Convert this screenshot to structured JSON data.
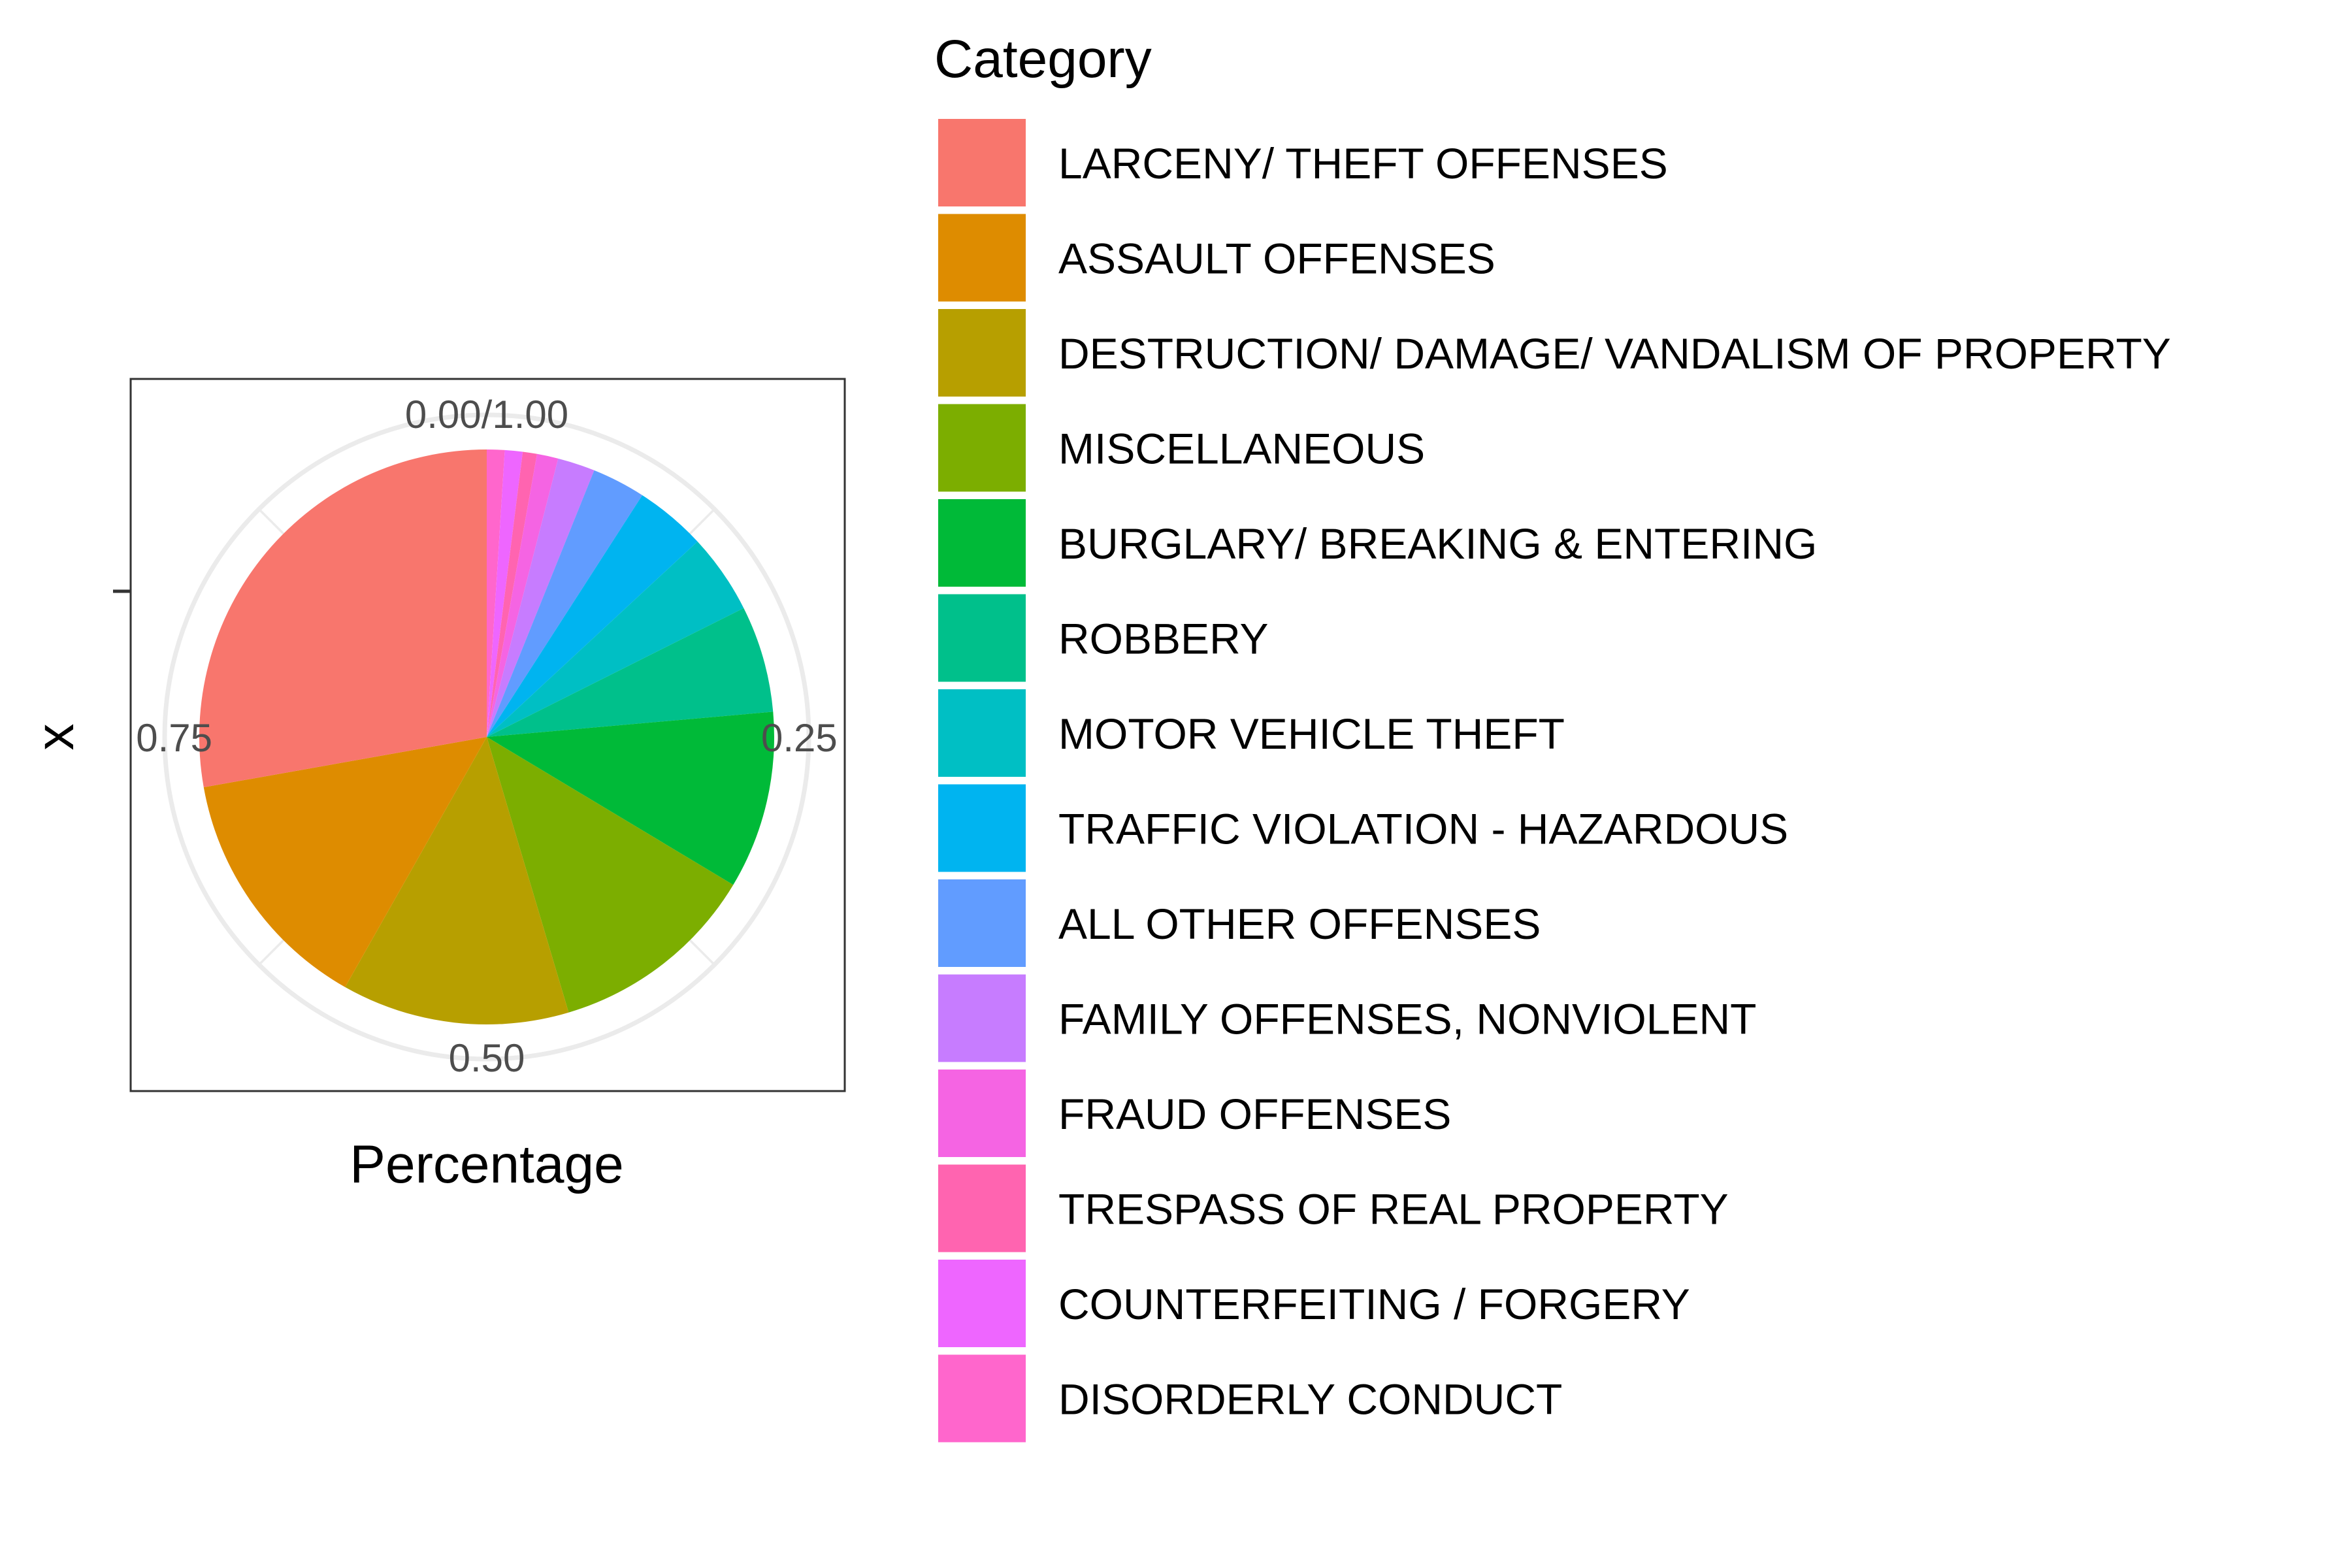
{
  "chart_data": {
    "type": "pie",
    "xlabel": "Percentage",
    "ylabel": "x",
    "theta_ticks": [
      {
        "value": 0.0,
        "label": "0.00/1.00"
      },
      {
        "value": 0.25,
        "label": "0.25"
      },
      {
        "value": 0.5,
        "label": "0.50"
      },
      {
        "value": 0.75,
        "label": "0.75"
      }
    ],
    "legend": {
      "title": "Category",
      "position": "right"
    },
    "grid": true,
    "slices": [
      {
        "category": "LARCENY/ THEFT OFFENSES",
        "value": 0.278,
        "color": "#F8766D"
      },
      {
        "category": "ASSAULT OFFENSES",
        "value": 0.14,
        "color": "#DE8C00"
      },
      {
        "category": "DESTRUCTION/ DAMAGE/ VANDALISM OF PROPERTY",
        "value": 0.128,
        "color": "#B79F00"
      },
      {
        "category": "MISCELLANEOUS",
        "value": 0.118,
        "color": "#7CAE00"
      },
      {
        "category": "BURGLARY/ BREAKING & ENTERING",
        "value": 0.1,
        "color": "#00BA38"
      },
      {
        "category": "ROBBERY",
        "value": 0.06,
        "color": "#00C08B"
      },
      {
        "category": "MOTOR VEHICLE THEFT",
        "value": 0.045,
        "color": "#00BFC4"
      },
      {
        "category": "TRAFFIC VIOLATION - HAZARDOUS",
        "value": 0.04,
        "color": "#00B4F0"
      },
      {
        "category": "ALL OTHER OFFENSES",
        "value": 0.03,
        "color": "#619CFF"
      },
      {
        "category": "FAMILY OFFENSES, NONVIOLENT",
        "value": 0.021,
        "color": "#C77CFF"
      },
      {
        "category": "FRAUD OFFENSES",
        "value": 0.012,
        "color": "#F564E3"
      },
      {
        "category": "TRESPASS OF REAL PROPERTY",
        "value": 0.008,
        "color": "#FF64B0"
      },
      {
        "category": "COUNTERFEITING / FORGERY",
        "value": 0.01,
        "color": "#ee66ff"
      },
      {
        "category": "DISORDERLY CONDUCT",
        "value": 0.01,
        "color": "#ff66cc"
      }
    ]
  }
}
